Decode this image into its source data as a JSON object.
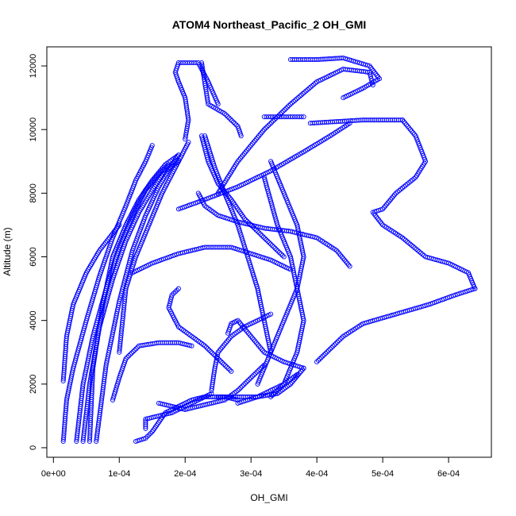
{
  "chart_data": {
    "type": "scatter",
    "title": "ATOM4 Northeast_Pacific_2 OH_GMI",
    "xlabel": "OH_GMI",
    "ylabel": "Altitude (m)",
    "xlim": [
      -1e-05,
      0.000665
    ],
    "ylim": [
      -300,
      12600
    ],
    "xticks": [
      0,
      0.0001,
      0.0002,
      0.0003,
      0.0004,
      0.0005,
      0.0006
    ],
    "xtick_labels": [
      "0e+00",
      "1e-04",
      "2e-04",
      "3e-04",
      "4e-04",
      "5e-04",
      "6e-04"
    ],
    "yticks": [
      0,
      2000,
      4000,
      6000,
      8000,
      10000,
      12000
    ],
    "ytick_labels": [
      "0",
      "2000",
      "4000",
      "6000",
      "8000",
      "10000",
      "12000"
    ],
    "marker": "open-circle",
    "color": "#0000ff",
    "grid": false,
    "legend": "none",
    "series": [
      {
        "x": [
          1.5e-05,
          2e-05,
          3e-05,
          5e-05,
          7e-05,
          9e-05,
          0.00011,
          0.000125,
          0.00014,
          0.00015
        ],
        "y": [
          200,
          1500,
          2500,
          4000,
          5400,
          6600,
          7600,
          8400,
          9000,
          9500
        ]
      },
      {
        "x": [
          3.5e-05,
          4.5e-05,
          6e-05,
          8e-05,
          0.0001,
          0.00012,
          0.00014,
          0.00016,
          0.000175
        ],
        "y": [
          200,
          2000,
          3500,
          5000,
          6300,
          7300,
          8100,
          8600,
          8900
        ]
      },
      {
        "x": [
          4.5e-05,
          5.5e-05,
          7e-05,
          9e-05,
          0.00011,
          0.00013,
          0.00015,
          0.00017,
          0.00019
        ],
        "y": [
          200,
          2000,
          3800,
          5300,
          6500,
          7400,
          8100,
          8700,
          9000
        ]
      },
      {
        "x": [
          5.5e-05,
          6e-05,
          7.5e-05,
          9e-05,
          0.00011,
          0.00013,
          0.00015,
          0.00017,
          0.00019
        ],
        "y": [
          200,
          2500,
          4500,
          6000,
          7000,
          7800,
          8400,
          8900,
          9200
        ]
      },
      {
        "x": [
          6.5e-05,
          8e-05,
          0.0001,
          0.00012,
          0.00014,
          0.00016,
          0.00018,
          0.00019
        ],
        "y": [
          200,
          2600,
          4600,
          6200,
          7300,
          8200,
          8900,
          9200
        ]
      },
      {
        "x": [
          1.5e-05,
          2e-05,
          3e-05,
          5e-05,
          7e-05,
          0.0001
        ],
        "y": [
          2100,
          3500,
          4500,
          5500,
          6200,
          7000
        ]
      },
      {
        "x": [
          0.0001,
          0.000105,
          0.00011,
          0.000125,
          0.000145,
          0.000165,
          0.000185,
          0.000205
        ],
        "y": [
          3000,
          4000,
          5000,
          6000,
          7000,
          8000,
          8800,
          9600
        ]
      },
      {
        "x": [
          0.0002,
          0.000205,
          0.0002,
          0.00019,
          0.000185,
          0.00019,
          0.0002,
          0.00022,
          0.000235,
          0.00025
        ],
        "y": [
          9700,
          10300,
          11000,
          11500,
          11800,
          12100,
          12100,
          12100,
          11500,
          10800
        ]
      },
      {
        "x": [
          0.000225,
          0.000235,
          0.00026,
          0.00028,
          0.000285
        ],
        "y": [
          12100,
          10800,
          10500,
          10100,
          9800
        ]
      },
      {
        "x": [
          0.000225,
          0.000235,
          0.00025,
          0.00027,
          0.00029,
          0.00031,
          0.00033,
          0.00035
        ],
        "y": [
          9800,
          9000,
          8300,
          7800,
          7200,
          6800,
          6400,
          6000
        ]
      },
      {
        "x": [
          0.00023,
          0.000245,
          0.00026,
          0.00028,
          0.000295,
          0.00031,
          0.00032,
          0.00033
        ],
        "y": [
          9800,
          8800,
          8000,
          7000,
          6000,
          5000,
          4000,
          3000
        ]
      },
      {
        "x": [
          0.00022,
          0.00023,
          0.00025,
          0.00028,
          0.00032,
          0.00036,
          0.0004,
          0.00043,
          0.00045
        ],
        "y": [
          8000,
          7600,
          7300,
          7100,
          6900,
          6800,
          6600,
          6200,
          5700
        ]
      },
      {
        "x": [
          0.00012,
          0.00015,
          0.00019,
          0.00023,
          0.00027,
          0.0003,
          0.00033,
          0.00036
        ],
        "y": [
          5500,
          5800,
          6100,
          6300,
          6300,
          6100,
          5900,
          5600
        ]
      },
      {
        "x": [
          0.00019,
          0.00023,
          0.00028,
          0.00033,
          0.00038,
          0.00042,
          0.00045
        ],
        "y": [
          7500,
          7800,
          8200,
          8700,
          9300,
          9800,
          10200
        ]
      },
      {
        "x": [
          0.00025,
          0.00028,
          0.00032,
          0.00036,
          0.0004,
          0.00044,
          0.00048,
          0.000485
        ],
        "y": [
          8000,
          9000,
          10000,
          10800,
          11500,
          11900,
          11800,
          11400
        ]
      },
      {
        "x": [
          0.00032,
          0.00034,
          0.00036,
          0.00038
        ],
        "y": [
          10400,
          10400,
          10400,
          10400
        ]
      },
      {
        "x": [
          0.00036,
          0.0004,
          0.00044,
          0.00048,
          0.000495,
          0.00047,
          0.00044
        ],
        "y": [
          12200,
          12200,
          12250,
          12000,
          11600,
          11300,
          11000
        ]
      },
      {
        "x": [
          0.00039,
          0.00043,
          0.00047,
          0.0005,
          0.00053
        ],
        "y": [
          10200,
          10250,
          10300,
          10300,
          10300
        ]
      },
      {
        "x": [
          0.00053,
          0.00055,
          0.000565,
          0.00055,
          0.00052,
          0.0005,
          0.000485,
          0.0005,
          0.00053,
          0.000565,
          0.0006,
          0.00063,
          0.00064
        ],
        "y": [
          10300,
          9800,
          9000,
          8500,
          8000,
          7500,
          7400,
          7000,
          6600,
          6000,
          5800,
          5500,
          5000
        ]
      },
      {
        "x": [
          0.00064,
          0.00061,
          0.00057,
          0.00052,
          0.00047,
          0.00044,
          0.00042,
          0.0004
        ],
        "y": [
          5000,
          4800,
          4500,
          4200,
          3900,
          3500,
          3100,
          2700
        ]
      },
      {
        "x": [
          0.00033,
          0.00035,
          0.00037,
          0.00038,
          0.00037,
          0.00035,
          0.00033,
          0.00031
        ],
        "y": [
          9000,
          8000,
          7000,
          6000,
          5000,
          4000,
          3000,
          2000
        ]
      },
      {
        "x": [
          0.00032,
          0.00034,
          0.00036,
          0.00037,
          0.00038,
          0.00037,
          0.00036,
          0.00035,
          0.00033
        ],
        "y": [
          8500,
          7000,
          6000,
          5000,
          4000,
          3000,
          2500,
          2000,
          1600
        ]
      },
      {
        "x": [
          0.00025,
          0.00028,
          0.00031,
          0.00034,
          0.00036,
          0.00038
        ],
        "y": [
          1600,
          1600,
          1600,
          1700,
          2000,
          2500
        ]
      },
      {
        "x": [
          0.00028,
          0.00031,
          0.00033,
          0.00035,
          0.00037
        ],
        "y": [
          1400,
          1600,
          1800,
          2000,
          2300
        ]
      },
      {
        "x": [
          0.000125,
          0.00014,
          0.00015,
          0.00016,
          0.00017,
          0.00019,
          0.00021,
          0.00023,
          0.00026,
          0.00028
        ],
        "y": [
          200,
          300,
          500,
          800,
          1100,
          1300,
          1500,
          1600,
          1600,
          1500
        ]
      },
      {
        "x": [
          0.00014,
          0.00014,
          0.00016,
          0.00018,
          0.0002,
          0.00022,
          0.00024
        ],
        "y": [
          600,
          900,
          1000,
          1100,
          1300,
          1500,
          1700
        ]
      },
      {
        "x": [
          0.00024,
          0.000245,
          0.00025,
          0.00027,
          0.00029,
          0.00031,
          0.00033
        ],
        "y": [
          1800,
          2500,
          3000,
          3500,
          3800,
          4000,
          4200
        ]
      },
      {
        "x": [
          0.00019,
          0.00018,
          0.000175,
          0.00019,
          0.00021,
          0.00023,
          0.00025,
          0.00027
        ],
        "y": [
          5000,
          4800,
          4400,
          3800,
          3500,
          3200,
          2800,
          2400
        ]
      },
      {
        "x": [
          0.000265,
          0.00027,
          0.00028,
          0.0003,
          0.00032,
          0.00035,
          0.00038
        ],
        "y": [
          3600,
          3900,
          4000,
          3500,
          3000,
          2700,
          2500
        ]
      },
      {
        "x": [
          0.00016,
          0.00018,
          0.0002,
          0.00022,
          0.00024,
          0.00026,
          0.00028,
          0.0003,
          0.00032
        ],
        "y": [
          1400,
          1300,
          1200,
          1300,
          1400,
          1500,
          1800,
          2200,
          2600
        ]
      },
      {
        "x": [
          9e-05,
          0.0001,
          0.00011,
          0.00013,
          0.00016,
          0.00019,
          0.00021
        ],
        "y": [
          1500,
          2200,
          2800,
          3200,
          3300,
          3300,
          3200
        ]
      }
    ]
  }
}
